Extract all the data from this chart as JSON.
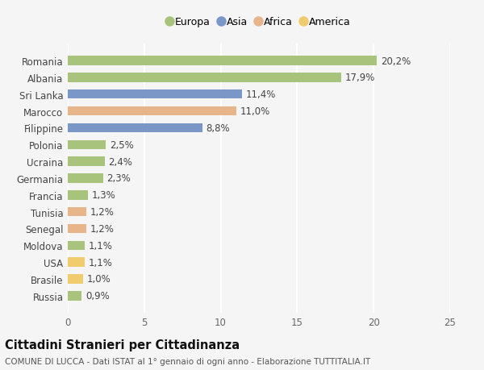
{
  "countries": [
    "Romania",
    "Albania",
    "Sri Lanka",
    "Marocco",
    "Filippine",
    "Polonia",
    "Ucraina",
    "Germania",
    "Francia",
    "Tunisia",
    "Senegal",
    "Moldova",
    "USA",
    "Brasile",
    "Russia"
  ],
  "values": [
    20.2,
    17.9,
    11.4,
    11.0,
    8.8,
    2.5,
    2.4,
    2.3,
    1.3,
    1.2,
    1.2,
    1.1,
    1.1,
    1.0,
    0.9
  ],
  "labels": [
    "20,2%",
    "17,9%",
    "11,4%",
    "11,0%",
    "8,8%",
    "2,5%",
    "2,4%",
    "2,3%",
    "1,3%",
    "1,2%",
    "1,2%",
    "1,1%",
    "1,1%",
    "1,0%",
    "0,9%"
  ],
  "continents": [
    "Europa",
    "Europa",
    "Asia",
    "Africa",
    "Asia",
    "Europa",
    "Europa",
    "Europa",
    "Europa",
    "Africa",
    "Africa",
    "Europa",
    "America",
    "America",
    "Europa"
  ],
  "colors": {
    "Europa": "#a8c47c",
    "Asia": "#7b97c8",
    "Africa": "#e8b48a",
    "America": "#f0cc6e"
  },
  "legend_order": [
    "Europa",
    "Asia",
    "Africa",
    "America"
  ],
  "xlim": [
    0,
    25
  ],
  "xticks": [
    0,
    5,
    10,
    15,
    20,
    25
  ],
  "title": "Cittadini Stranieri per Cittadinanza",
  "subtitle": "COMUNE DI LUCCA - Dati ISTAT al 1° gennaio di ogni anno - Elaborazione TUTTITALIA.IT",
  "background_color": "#f5f5f5",
  "grid_color": "#ffffff",
  "bar_height": 0.55,
  "label_fontsize": 8.5,
  "tick_fontsize": 8.5,
  "title_fontsize": 10.5,
  "subtitle_fontsize": 7.5
}
